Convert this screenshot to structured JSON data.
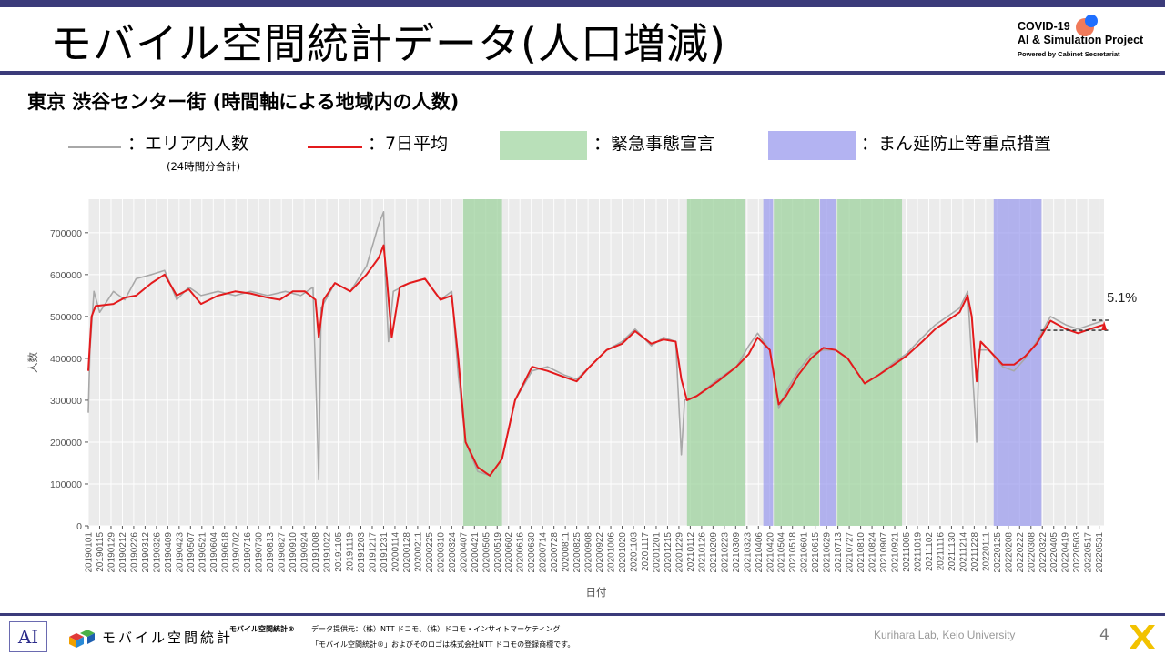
{
  "header": {
    "title": "モバイル空間統計データ(人口増減)",
    "logo": {
      "line1": "COVID-19",
      "line2": "AI & Simulation Project",
      "line3": "Powered by Cabinet Secretariat"
    }
  },
  "subtitle": "東京 渋谷センター街 (時間軸による地域内の人数)",
  "legend": {
    "gray_label": "：エリア内人数",
    "gray_note": "(24時間分合計)",
    "red_label": "：7日平均",
    "green_label": "：緊急事態宣言",
    "blue_label": "：まん延防止等重点措置"
  },
  "colors": {
    "gray_series": "#a8a8a8",
    "red_series": "#e31a1c",
    "emergency_band": "#9fd39f",
    "semi_emergency_band": "#9999ee",
    "plot_background": "#ebebeb",
    "title_rule": "#3b3b7a"
  },
  "chart_data": {
    "type": "line",
    "xlabel": "日付",
    "ylabel": "人数",
    "ylim": [
      0,
      780000
    ],
    "yticks": [
      0,
      100000,
      200000,
      300000,
      400000,
      500000,
      600000,
      700000
    ],
    "x_tick_labels": [
      "20190101",
      "20190115",
      "20190129",
      "20190212",
      "20190226",
      "20190312",
      "20190326",
      "20190409",
      "20190423",
      "20190507",
      "20190521",
      "20190604",
      "20190618",
      "20190702",
      "20190716",
      "20190730",
      "20190813",
      "20190827",
      "20190910",
      "20190924",
      "20191008",
      "20191022",
      "20191105",
      "20191119",
      "20191203",
      "20191217",
      "20191231",
      "20200114",
      "20200128",
      "20200211",
      "20200225",
      "20200310",
      "20200324",
      "20200407",
      "20200421",
      "20200505",
      "20200519",
      "20200602",
      "20200616",
      "20200630",
      "20200714",
      "20200728",
      "20200811",
      "20200825",
      "20200908",
      "20200922",
      "20201006",
      "20201020",
      "20201103",
      "20201117",
      "20201201",
      "20201215",
      "20201229",
      "20210112",
      "20210126",
      "20210209",
      "20210223",
      "20210309",
      "20210323",
      "20210406",
      "20210420",
      "20210504",
      "20210518",
      "20210601",
      "20210615",
      "20210629",
      "20210713",
      "20210727",
      "20210810",
      "20210824",
      "20210907",
      "20210921",
      "20211005",
      "20211019",
      "20211102",
      "20211116",
      "20211130",
      "20211214",
      "20211228",
      "20220111",
      "20220125",
      "20220208",
      "20220222",
      "20220308",
      "20220322",
      "20220405",
      "20220419",
      "20220503",
      "20220517",
      "20220531"
    ],
    "emergency_periods": [
      [
        "2020-04-07",
        "2020-05-25"
      ],
      [
        "2021-01-08",
        "2021-03-21"
      ],
      [
        "2021-04-25",
        "2021-06-20"
      ],
      [
        "2021-07-12",
        "2021-09-30"
      ]
    ],
    "semi_emergency_periods": [
      [
        "2021-04-12",
        "2021-04-24"
      ],
      [
        "2021-06-21",
        "2021-07-11"
      ],
      [
        "2022-01-21",
        "2022-03-21"
      ]
    ],
    "series": [
      {
        "name": "エリア内人数",
        "points": [
          [
            "2019-01-01",
            270000
          ],
          [
            "2019-01-03",
            420000
          ],
          [
            "2019-01-08",
            560000
          ],
          [
            "2019-01-15",
            510000
          ],
          [
            "2019-02-01",
            560000
          ],
          [
            "2019-02-15",
            540000
          ],
          [
            "2019-03-01",
            590000
          ],
          [
            "2019-03-20",
            600000
          ],
          [
            "2019-04-05",
            610000
          ],
          [
            "2019-04-20",
            540000
          ],
          [
            "2019-05-05",
            570000
          ],
          [
            "2019-05-20",
            550000
          ],
          [
            "2019-06-10",
            560000
          ],
          [
            "2019-07-01",
            550000
          ],
          [
            "2019-07-20",
            560000
          ],
          [
            "2019-08-10",
            550000
          ],
          [
            "2019-09-01",
            560000
          ],
          [
            "2019-09-20",
            550000
          ],
          [
            "2019-10-05",
            570000
          ],
          [
            "2019-10-12",
            110000
          ],
          [
            "2019-10-15",
            520000
          ],
          [
            "2019-11-01",
            580000
          ],
          [
            "2019-11-20",
            560000
          ],
          [
            "2019-12-10",
            620000
          ],
          [
            "2019-12-25",
            720000
          ],
          [
            "2019-12-31",
            750000
          ],
          [
            "2020-01-02",
            600000
          ],
          [
            "2020-01-06",
            440000
          ],
          [
            "2020-01-12",
            560000
          ],
          [
            "2020-02-01",
            580000
          ],
          [
            "2020-02-20",
            590000
          ],
          [
            "2020-03-10",
            540000
          ],
          [
            "2020-03-24",
            560000
          ],
          [
            "2020-04-01",
            360000
          ],
          [
            "2020-04-10",
            200000
          ],
          [
            "2020-04-25",
            130000
          ],
          [
            "2020-05-10",
            120000
          ],
          [
            "2020-05-25",
            160000
          ],
          [
            "2020-06-10",
            300000
          ],
          [
            "2020-07-01",
            370000
          ],
          [
            "2020-07-20",
            380000
          ],
          [
            "2020-08-10",
            360000
          ],
          [
            "2020-08-25",
            350000
          ],
          [
            "2020-09-10",
            380000
          ],
          [
            "2020-10-01",
            420000
          ],
          [
            "2020-10-20",
            440000
          ],
          [
            "2020-11-05",
            470000
          ],
          [
            "2020-11-25",
            430000
          ],
          [
            "2020-12-10",
            450000
          ],
          [
            "2020-12-25",
            440000
          ],
          [
            "2021-01-01",
            170000
          ],
          [
            "2021-01-05",
            300000
          ],
          [
            "2021-01-20",
            310000
          ],
          [
            "2021-02-15",
            350000
          ],
          [
            "2021-03-10",
            380000
          ],
          [
            "2021-03-25",
            430000
          ],
          [
            "2021-04-05",
            460000
          ],
          [
            "2021-04-20",
            420000
          ],
          [
            "2021-05-01",
            280000
          ],
          [
            "2021-05-10",
            320000
          ],
          [
            "2021-05-25",
            370000
          ],
          [
            "2021-06-10",
            410000
          ],
          [
            "2021-06-25",
            420000
          ],
          [
            "2021-07-10",
            420000
          ],
          [
            "2021-07-25",
            400000
          ],
          [
            "2021-08-15",
            340000
          ],
          [
            "2021-09-01",
            360000
          ],
          [
            "2021-09-20",
            390000
          ],
          [
            "2021-10-05",
            410000
          ],
          [
            "2021-10-25",
            450000
          ],
          [
            "2021-11-10",
            480000
          ],
          [
            "2021-11-25",
            500000
          ],
          [
            "2021-12-10",
            520000
          ],
          [
            "2021-12-20",
            560000
          ],
          [
            "2021-12-31",
            200000
          ],
          [
            "2022-01-03",
            420000
          ],
          [
            "2022-01-15",
            420000
          ],
          [
            "2022-02-01",
            380000
          ],
          [
            "2022-02-15",
            370000
          ],
          [
            "2022-03-01",
            400000
          ],
          [
            "2022-03-15",
            440000
          ],
          [
            "2022-04-01",
            500000
          ],
          [
            "2022-04-20",
            480000
          ],
          [
            "2022-05-05",
            470000
          ],
          [
            "2022-05-20",
            480000
          ],
          [
            "2022-06-05",
            490000
          ]
        ]
      },
      {
        "name": "7日平均",
        "points": [
          [
            "2019-01-01",
            370000
          ],
          [
            "2019-01-05",
            500000
          ],
          [
            "2019-01-10",
            525000
          ],
          [
            "2019-02-01",
            530000
          ],
          [
            "2019-02-15",
            545000
          ],
          [
            "2019-03-01",
            550000
          ],
          [
            "2019-03-20",
            580000
          ],
          [
            "2019-04-05",
            600000
          ],
          [
            "2019-04-20",
            550000
          ],
          [
            "2019-05-05",
            565000
          ],
          [
            "2019-05-20",
            530000
          ],
          [
            "2019-06-10",
            550000
          ],
          [
            "2019-07-01",
            560000
          ],
          [
            "2019-07-20",
            555000
          ],
          [
            "2019-08-10",
            545000
          ],
          [
            "2019-08-25",
            540000
          ],
          [
            "2019-09-10",
            560000
          ],
          [
            "2019-09-25",
            560000
          ],
          [
            "2019-10-08",
            540000
          ],
          [
            "2019-10-12",
            450000
          ],
          [
            "2019-10-18",
            540000
          ],
          [
            "2019-11-01",
            580000
          ],
          [
            "2019-11-20",
            560000
          ],
          [
            "2019-12-10",
            600000
          ],
          [
            "2019-12-25",
            640000
          ],
          [
            "2019-12-31",
            670000
          ],
          [
            "2020-01-04",
            590000
          ],
          [
            "2020-01-10",
            450000
          ],
          [
            "2020-01-20",
            570000
          ],
          [
            "2020-02-01",
            580000
          ],
          [
            "2020-02-20",
            590000
          ],
          [
            "2020-03-10",
            540000
          ],
          [
            "2020-03-24",
            550000
          ],
          [
            "2020-04-01",
            400000
          ],
          [
            "2020-04-10",
            200000
          ],
          [
            "2020-04-25",
            140000
          ],
          [
            "2020-05-10",
            120000
          ],
          [
            "2020-05-25",
            160000
          ],
          [
            "2020-06-10",
            300000
          ],
          [
            "2020-07-01",
            380000
          ],
          [
            "2020-07-20",
            370000
          ],
          [
            "2020-08-10",
            355000
          ],
          [
            "2020-08-25",
            345000
          ],
          [
            "2020-09-10",
            380000
          ],
          [
            "2020-10-01",
            420000
          ],
          [
            "2020-10-20",
            435000
          ],
          [
            "2020-11-05",
            465000
          ],
          [
            "2020-11-25",
            435000
          ],
          [
            "2020-12-10",
            445000
          ],
          [
            "2020-12-25",
            440000
          ],
          [
            "2021-01-01",
            350000
          ],
          [
            "2021-01-08",
            300000
          ],
          [
            "2021-01-20",
            310000
          ],
          [
            "2021-02-15",
            345000
          ],
          [
            "2021-03-10",
            380000
          ],
          [
            "2021-03-25",
            410000
          ],
          [
            "2021-04-05",
            450000
          ],
          [
            "2021-04-20",
            420000
          ],
          [
            "2021-05-01",
            290000
          ],
          [
            "2021-05-10",
            310000
          ],
          [
            "2021-05-25",
            360000
          ],
          [
            "2021-06-10",
            400000
          ],
          [
            "2021-06-25",
            425000
          ],
          [
            "2021-07-10",
            420000
          ],
          [
            "2021-07-25",
            400000
          ],
          [
            "2021-08-15",
            340000
          ],
          [
            "2021-09-01",
            360000
          ],
          [
            "2021-09-20",
            385000
          ],
          [
            "2021-10-05",
            405000
          ],
          [
            "2021-10-25",
            440000
          ],
          [
            "2021-11-10",
            470000
          ],
          [
            "2021-11-25",
            490000
          ],
          [
            "2021-12-10",
            510000
          ],
          [
            "2021-12-20",
            550000
          ],
          [
            "2021-12-25",
            500000
          ],
          [
            "2021-12-31",
            345000
          ],
          [
            "2022-01-05",
            440000
          ],
          [
            "2022-01-15",
            420000
          ],
          [
            "2022-02-01",
            385000
          ],
          [
            "2022-02-15",
            385000
          ],
          [
            "2022-03-01",
            405000
          ],
          [
            "2022-03-15",
            435000
          ],
          [
            "2022-04-01",
            490000
          ],
          [
            "2022-04-20",
            470000
          ],
          [
            "2022-05-05",
            460000
          ],
          [
            "2022-05-20",
            470000
          ],
          [
            "2022-06-05",
            480000
          ]
        ]
      }
    ],
    "annotation": {
      "text": "5.1%",
      "from_value": 467000,
      "to_value": 491000
    }
  },
  "footer": {
    "ai_logo": "AI",
    "mobile_brand": "モバイル空間統計",
    "mark": "モバイル空間統計®",
    "provider": "データ提供元：（株）NTT ドコモ、（株）ドコモ・インサイトマーケティング",
    "trademark": "「モバイル空間統計®」およびそのロゴは株式会社NTT ドコモの登録商標です。",
    "lab": "Kurihara Lab, Keio University",
    "page": "4"
  }
}
